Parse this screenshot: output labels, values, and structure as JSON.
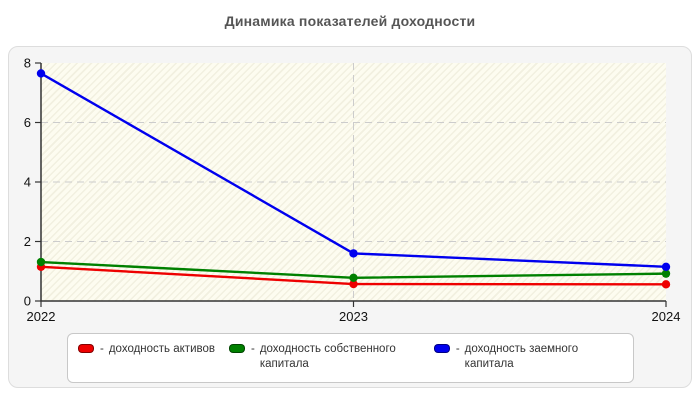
{
  "chart_data": {
    "type": "line",
    "title": "Динамика показателей доходности",
    "categories": [
      "2022",
      "2023",
      "2024"
    ],
    "series": [
      {
        "name": "доходность активов",
        "color": "#ee0000",
        "values": [
          1.15,
          0.57,
          0.56
        ]
      },
      {
        "name": "доходность собственного капитала",
        "color": "#008000",
        "values": [
          1.31,
          0.78,
          0.92
        ]
      },
      {
        "name": "доходность заемного капитала",
        "color": "#0000ee",
        "values": [
          7.65,
          1.6,
          1.15
        ]
      }
    ],
    "ylim": [
      0,
      8
    ],
    "yticks": [
      0,
      2,
      4,
      6,
      8
    ],
    "xlabel": "",
    "ylabel": "",
    "grid": {
      "horizontal_at": [
        2,
        4,
        6
      ],
      "vertical_at": [
        "2023"
      ],
      "style": "dashed"
    },
    "legend_position": "bottom"
  },
  "legend": {
    "dash": "-",
    "items": [
      {
        "label": "доходность активов",
        "color": "#ee0000"
      },
      {
        "label": "доходность собственного капитала",
        "color": "#008000"
      },
      {
        "label": "доходность заемного капитала",
        "color": "#0000ee"
      }
    ]
  },
  "colors": {
    "panel_bg": "#f5f5f5",
    "panel_border": "#dddddd",
    "plot_bg": "#fdfcf0",
    "grid": "#cccccc",
    "axis": "#333333",
    "title": "#555555"
  }
}
